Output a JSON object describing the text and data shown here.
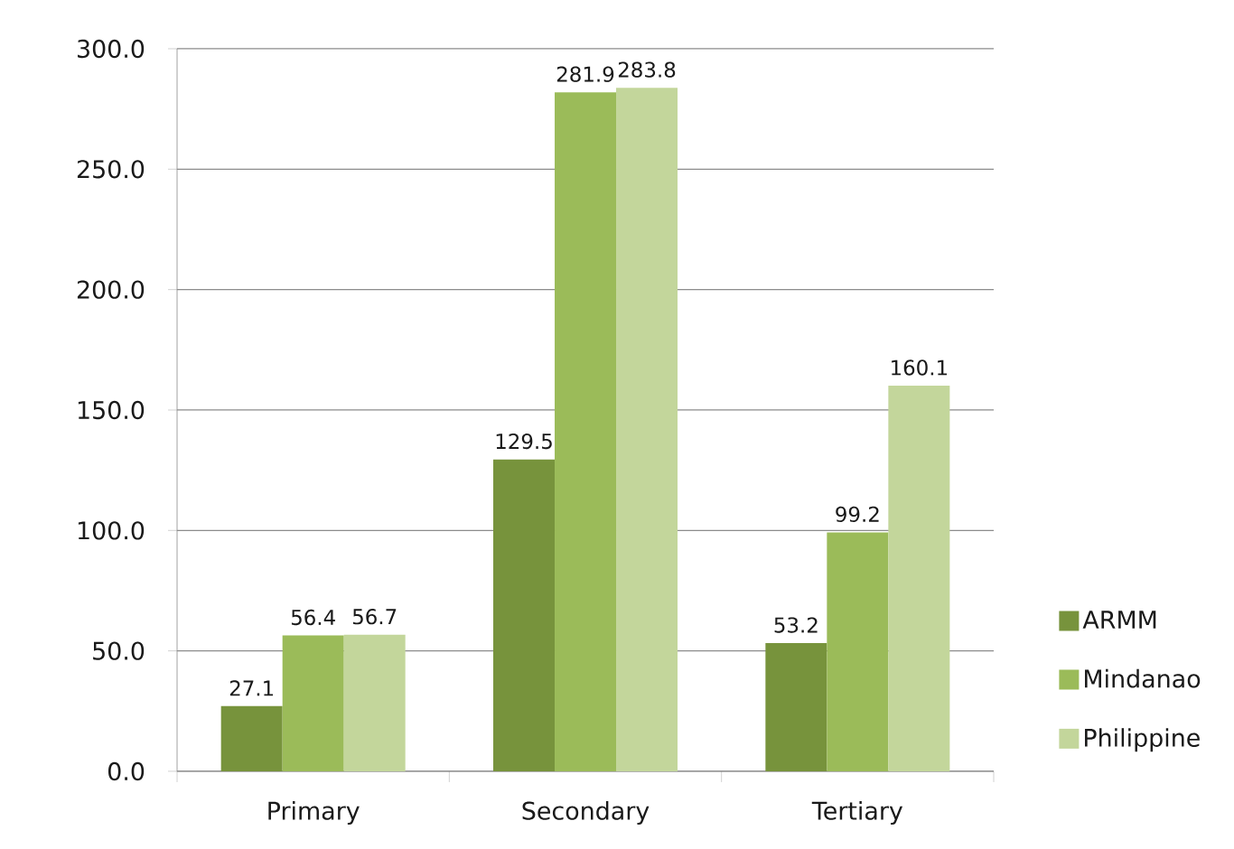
{
  "chart_data": {
    "type": "bar",
    "categories": [
      "Primary",
      "Secondary",
      "Tertiary"
    ],
    "series": [
      {
        "name": "ARMM",
        "color": "#77933c",
        "values": [
          27.1,
          129.5,
          53.2
        ]
      },
      {
        "name": "Mindanao",
        "color": "#9bbb59",
        "values": [
          56.4,
          281.9,
          99.2
        ]
      },
      {
        "name": "Philippine",
        "color": "#c3d69b",
        "values": [
          56.7,
          283.8,
          160.1
        ]
      }
    ],
    "ylim": [
      0,
      300
    ],
    "yticks": [
      {
        "value": 0,
        "label": "0.0"
      },
      {
        "value": 50,
        "label": "50.0"
      },
      {
        "value": 100,
        "label": "100.0"
      },
      {
        "value": 150,
        "label": "150.0"
      },
      {
        "value": 200,
        "label": "200.0"
      },
      {
        "value": 250,
        "label": "250.0"
      },
      {
        "value": 300,
        "label": "300.0"
      }
    ],
    "grid": "y",
    "legend": "right",
    "data_labels": true
  }
}
